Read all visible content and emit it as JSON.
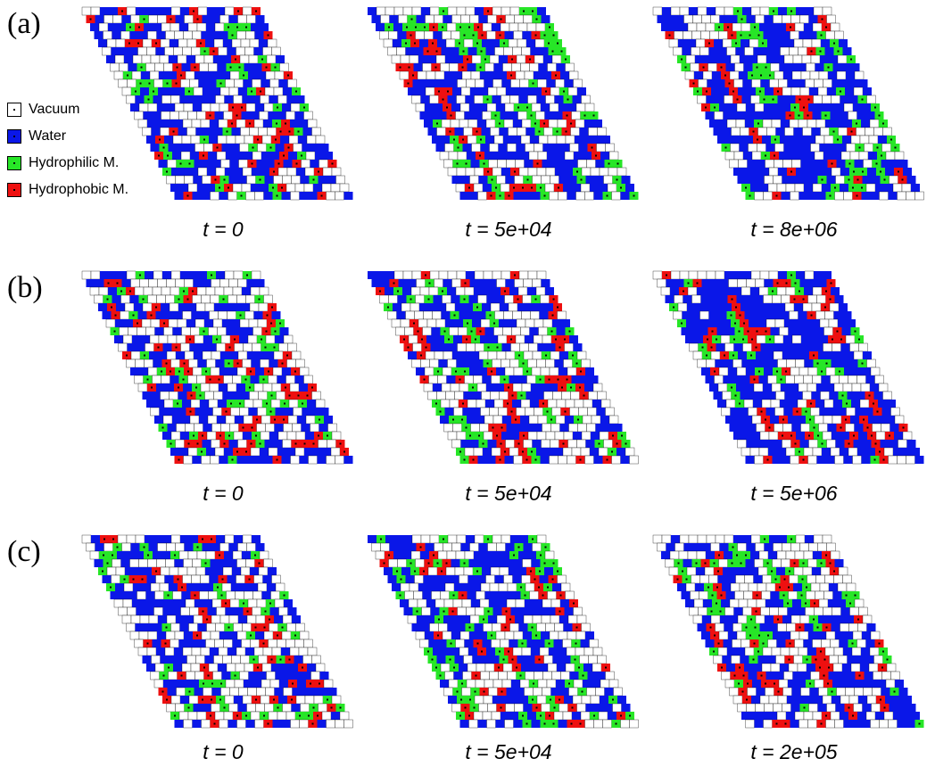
{
  "legend": {
    "items": [
      {
        "label": "Vacuum",
        "color": "#ffffff"
      },
      {
        "label": "Water",
        "color": "#0a17e8"
      },
      {
        "label": "Hydrophilic M.",
        "color": "#27e627"
      },
      {
        "label": "Hydrophobic M.",
        "color": "#ee1010"
      }
    ]
  },
  "rows": [
    {
      "label": "(a)",
      "times": [
        "t = 0",
        "t = 5e+04",
        "t = 8e+06"
      ]
    },
    {
      "label": "(b)",
      "times": [
        "t = 0",
        "t = 5e+04",
        "t = 5e+06"
      ]
    },
    {
      "label": "(c)",
      "times": [
        "t = 0",
        "t = 5e+04",
        "t = 2e+05"
      ]
    }
  ],
  "colors": {
    "vacuum": "#ffffff",
    "water": "#0a17e8",
    "hydrophilic": "#27e627",
    "hydrophobic": "#ee1010",
    "grid_line": "#000000"
  }
}
